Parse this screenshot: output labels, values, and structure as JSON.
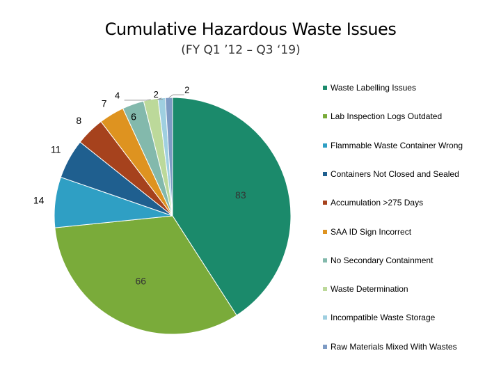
{
  "chart_data": {
    "type": "pie",
    "title": "Cumulative Hazardous Waste Issues",
    "subtitle": "(FY Q1 ’12 – Q3 ‘19)",
    "legend_position": "right",
    "series": [
      {
        "name": "Waste Labelling Issues",
        "value": 83,
        "color": "#1b8a6b"
      },
      {
        "name": "Lab Inspection Logs Outdated",
        "value": 66,
        "color": "#7aab3a"
      },
      {
        "name": "Flammable Waste Container Wrong",
        "value": 14,
        "color": "#2f9fc4"
      },
      {
        "name": "Containers Not Closed and Sealed",
        "value": 11,
        "color": "#1f5f8f"
      },
      {
        "name": "Accumulation >275 Days",
        "value": 8,
        "color": "#a6421d"
      },
      {
        "name": "SAA ID Sign Incorrect",
        "value": 7,
        "color": "#de9320"
      },
      {
        "name": "No Secondary Containment",
        "value": 6,
        "color": "#83b9ac"
      },
      {
        "name": "Waste Determination",
        "value": 4,
        "color": "#bcd99a"
      },
      {
        "name": "Incompatible Waste Storage",
        "value": 2,
        "color": "#9fcfe0"
      },
      {
        "name": "Raw Materials Mixed With Wastes",
        "value": 2,
        "color": "#7e9bc4"
      }
    ]
  }
}
